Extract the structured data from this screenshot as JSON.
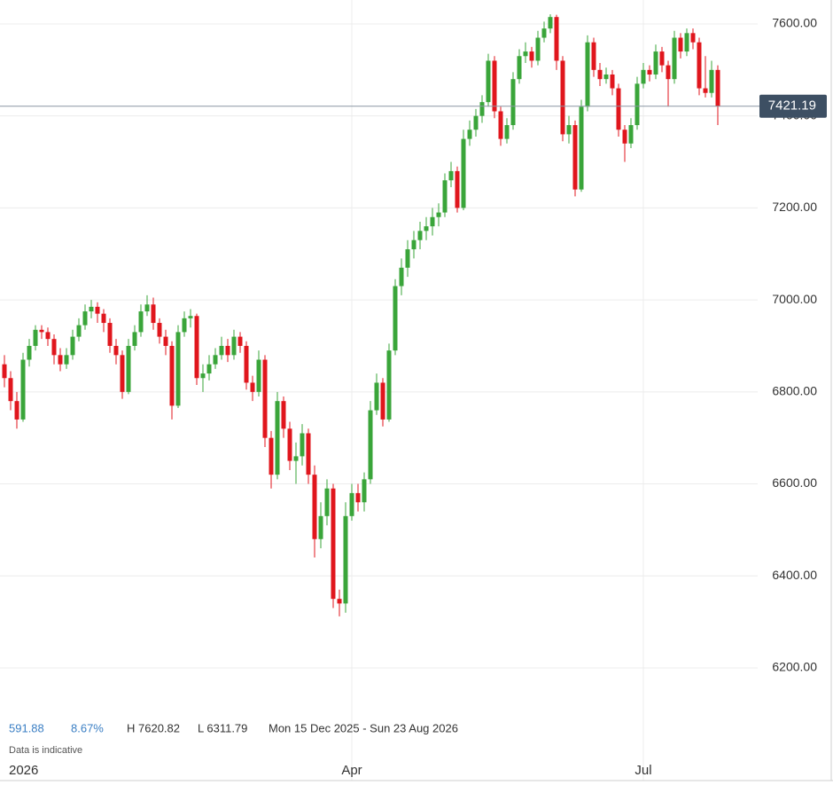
{
  "chart_data": {
    "type": "candlestick",
    "categories": [
      "2026",
      null,
      null,
      null,
      null,
      null,
      null,
      null,
      null,
      null,
      null,
      null,
      null,
      null,
      null,
      null,
      null,
      null,
      null,
      null,
      null,
      null,
      null,
      null,
      null,
      null,
      null,
      null,
      null,
      null,
      null,
      null,
      null,
      null,
      null,
      null,
      null,
      null,
      null,
      null,
      null,
      null,
      null,
      null,
      null,
      null,
      null,
      null,
      null,
      null,
      null,
      null,
      null,
      null,
      null,
      null,
      "Apr",
      null,
      null,
      null,
      null,
      null,
      null,
      null,
      null,
      null,
      null,
      null,
      null,
      null,
      null,
      null,
      null,
      null,
      null,
      null,
      null,
      null,
      null,
      null,
      null,
      null,
      null,
      null,
      null,
      null,
      null,
      null,
      null,
      null,
      null,
      null,
      null,
      null,
      null,
      null,
      null,
      null,
      null,
      null,
      null,
      null,
      null,
      "Jul",
      null,
      null,
      null,
      null,
      null,
      null,
      null,
      null,
      null,
      null,
      null,
      null
    ],
    "open": [
      6860,
      6830,
      6780,
      6740,
      6870,
      6900,
      6935,
      6930,
      6915,
      6880,
      6860,
      6880,
      6920,
      6945,
      6975,
      6985,
      6970,
      6950,
      6900,
      6880,
      6800,
      6900,
      6930,
      6975,
      6990,
      6950,
      6920,
      6900,
      6770,
      6930,
      6960,
      6965,
      6830,
      6840,
      6860,
      6880,
      6900,
      6880,
      6920,
      6900,
      6820,
      6800,
      6870,
      6700,
      6620,
      6780,
      6720,
      6650,
      6660,
      6710,
      6620,
      6480,
      6530,
      6590,
      6350,
      6340,
      6530,
      6580,
      6560,
      6610,
      6760,
      6820,
      6740,
      6890,
      7030,
      7070,
      7110,
      7130,
      7150,
      7160,
      7180,
      7190,
      7260,
      7280,
      7200,
      7350,
      7370,
      7400,
      7430,
      7520,
      7410,
      7350,
      7380,
      7480,
      7530,
      7540,
      7520,
      7570,
      7590,
      7615,
      7520,
      7360,
      7380,
      7240,
      7420,
      7560,
      7500,
      7480,
      7490,
      7460,
      7370,
      7340,
      7380,
      7470,
      7500,
      7490,
      7540,
      7510,
      7480,
      7570,
      7540,
      7580,
      7560,
      7460,
      7450,
      7500
    ],
    "high": [
      6880,
      6845,
      6800,
      6885,
      6915,
      6945,
      6945,
      6940,
      6925,
      6895,
      6895,
      6935,
      6960,
      6990,
      7000,
      6995,
      6980,
      6960,
      6915,
      6890,
      6915,
      6945,
      6990,
      7010,
      7005,
      6960,
      6935,
      6910,
      6945,
      6975,
      6980,
      6970,
      6860,
      6880,
      6895,
      6920,
      6915,
      6935,
      6930,
      6910,
      6835,
      6890,
      6880,
      6715,
      6800,
      6790,
      6735,
      6690,
      6730,
      6720,
      6640,
      6560,
      6610,
      6600,
      6370,
      6560,
      6600,
      6600,
      6625,
      6780,
      6840,
      6830,
      6905,
      7045,
      7090,
      7130,
      7150,
      7170,
      7180,
      7200,
      7210,
      7275,
      7300,
      7290,
      7370,
      7390,
      7415,
      7445,
      7535,
      7530,
      7420,
      7395,
      7495,
      7545,
      7560,
      7550,
      7585,
      7605,
      7621,
      7620,
      7530,
      7400,
      7390,
      7435,
      7575,
      7570,
      7515,
      7505,
      7500,
      7470,
      7380,
      7395,
      7485,
      7515,
      7510,
      7555,
      7550,
      7520,
      7585,
      7580,
      7590,
      7590,
      7570,
      7530,
      7520,
      7510
    ],
    "low": [
      6810,
      6760,
      6720,
      6735,
      6855,
      6890,
      6915,
      6900,
      6860,
      6845,
      6850,
      6870,
      6910,
      6935,
      6960,
      6950,
      6930,
      6885,
      6860,
      6785,
      6795,
      6890,
      6920,
      6965,
      6935,
      6905,
      6880,
      6740,
      6765,
      6920,
      6940,
      6815,
      6800,
      6825,
      6850,
      6870,
      6865,
      6870,
      6885,
      6805,
      6780,
      6790,
      6680,
      6590,
      6610,
      6700,
      6630,
      6600,
      6640,
      6600,
      6440,
      6460,
      6510,
      6330,
      6312,
      6320,
      6520,
      6540,
      6540,
      6600,
      6750,
      6725,
      6735,
      6880,
      7010,
      7050,
      7090,
      7110,
      7130,
      7140,
      7160,
      7180,
      7245,
      7190,
      7195,
      7335,
      7355,
      7385,
      7420,
      7395,
      7335,
      7340,
      7370,
      7470,
      7515,
      7505,
      7510,
      7560,
      7580,
      7500,
      7345,
      7340,
      7225,
      7235,
      7410,
      7485,
      7465,
      7470,
      7445,
      7355,
      7300,
      7330,
      7370,
      7460,
      7475,
      7480,
      7495,
      7420,
      7470,
      7525,
      7530,
      7545,
      7445,
      7440,
      7440,
      7380
    ],
    "close": [
      6830,
      6780,
      6740,
      6870,
      6900,
      6935,
      6930,
      6915,
      6880,
      6860,
      6880,
      6920,
      6945,
      6975,
      6985,
      6970,
      6950,
      6900,
      6880,
      6800,
      6900,
      6930,
      6975,
      6990,
      6950,
      6920,
      6900,
      6770,
      6930,
      6960,
      6965,
      6830,
      6840,
      6860,
      6880,
      6900,
      6880,
      6920,
      6900,
      6820,
      6800,
      6870,
      6700,
      6620,
      6780,
      6720,
      6650,
      6660,
      6710,
      6620,
      6480,
      6530,
      6590,
      6350,
      6340,
      6530,
      6580,
      6560,
      6610,
      6760,
      6820,
      6740,
      6890,
      7030,
      7070,
      7110,
      7130,
      7150,
      7160,
      7180,
      7190,
      7260,
      7280,
      7200,
      7350,
      7370,
      7400,
      7430,
      7520,
      7410,
      7350,
      7380,
      7480,
      7530,
      7540,
      7520,
      7570,
      7590,
      7615,
      7520,
      7360,
      7380,
      7240,
      7420,
      7560,
      7500,
      7480,
      7490,
      7460,
      7370,
      7340,
      7380,
      7470,
      7500,
      7490,
      7540,
      7510,
      7480,
      7570,
      7540,
      7580,
      7560,
      7460,
      7450,
      7500,
      7421.19
    ],
    "up_color": "#3aa53a",
    "down_color": "#e0161d",
    "last_price_color": "#3d4f63",
    "ylim": [
      5955,
      7652
    ],
    "yticks": [
      {
        "value": 6200,
        "label": "6200.00"
      },
      {
        "value": 6400,
        "label": "6400.00"
      },
      {
        "value": 6600,
        "label": "6600.00"
      },
      {
        "value": 6800,
        "label": "6800.00"
      },
      {
        "value": 7000,
        "label": "7000.00"
      },
      {
        "value": 7200,
        "label": "7200.00"
      },
      {
        "value": 7400,
        "label": "7400.00"
      },
      {
        "value": 7600,
        "label": "7600.00"
      }
    ],
    "grid": true,
    "stats": {
      "change": "591.88",
      "change_pct": "8.67%",
      "high": "H 7620.82",
      "low": "L 6311.79",
      "range": "Mon 15 Dec 2025 - Sun 23 Aug 2026"
    },
    "note": "Data is indicative"
  }
}
